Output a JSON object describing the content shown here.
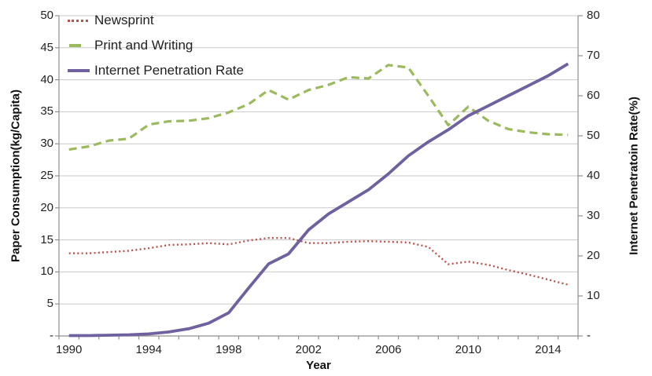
{
  "chart_data": {
    "type": "line",
    "title": "",
    "x": [
      1990,
      1991,
      1992,
      1993,
      1994,
      1995,
      1996,
      1997,
      1998,
      1999,
      2000,
      2001,
      2002,
      2003,
      2004,
      2005,
      2006,
      2007,
      2008,
      2009,
      2010,
      2011,
      2012,
      2013,
      2014,
      2015
    ],
    "series": [
      {
        "name": "Newsprint",
        "axis": "left",
        "style": "dotted",
        "color": "#bf514d",
        "values": [
          12.9,
          12.9,
          13.1,
          13.3,
          13.7,
          14.2,
          14.3,
          14.5,
          14.3,
          14.9,
          15.3,
          15.3,
          14.5,
          14.5,
          14.7,
          14.8,
          14.7,
          14.6,
          13.9,
          11.2,
          11.6,
          11.1,
          10.3,
          9.6,
          8.8,
          8.0
        ]
      },
      {
        "name": "Print and Writing",
        "axis": "left",
        "style": "dashed",
        "color": "#9bba5e",
        "values": [
          29.1,
          29.6,
          30.5,
          30.8,
          33.0,
          33.5,
          33.6,
          34.0,
          34.9,
          36.2,
          38.4,
          36.9,
          38.4,
          39.2,
          40.4,
          40.2,
          42.3,
          41.9,
          37.5,
          32.9,
          35.8,
          33.6,
          32.3,
          31.8,
          31.5,
          31.4
        ]
      },
      {
        "name": "Internet Penetration Rate",
        "axis": "right",
        "style": "solid",
        "color": "#6f61a0",
        "values": [
          0.1,
          0.1,
          0.2,
          0.3,
          0.5,
          1.0,
          1.8,
          3.2,
          5.8,
          12.0,
          18.0,
          20.5,
          26.5,
          30.5,
          33.5,
          36.5,
          40.5,
          45.0,
          48.5,
          51.5,
          55.0,
          57.5,
          60.0,
          62.5,
          65.0,
          68.0
        ]
      }
    ],
    "left_axis": {
      "label": "Paper Consumption(kg/Capita)",
      "min": 0,
      "max": 50,
      "tick_step": 5,
      "tick_labels": [
        "-",
        "5",
        "10",
        "15",
        "20",
        "25",
        "30",
        "35",
        "40",
        "45",
        "50"
      ]
    },
    "right_axis": {
      "label": "Internet Penetratoin Rate(%)",
      "min": 0,
      "max": 80,
      "tick_step": 10,
      "tick_labels": [
        "-",
        "10",
        "20",
        "30",
        "40",
        "50",
        "60",
        "70",
        "80"
      ]
    },
    "x_axis": {
      "label": "Year",
      "shown_tick_labels": [
        "1990",
        "1994",
        "1998",
        "2002",
        "2006",
        "2010",
        "2014"
      ],
      "label_every_n_years": 4
    },
    "legend": {
      "position": "top-left-inside",
      "entries": [
        "Newsprint",
        "Print and Writing",
        "Internet Penetration Rate"
      ]
    },
    "grid": "horizontal",
    "colors": {
      "gridline": "#c9c9c9",
      "axis_line": "#8f8f8f",
      "tick_text": "#232323",
      "background": "#ffffff"
    }
  }
}
